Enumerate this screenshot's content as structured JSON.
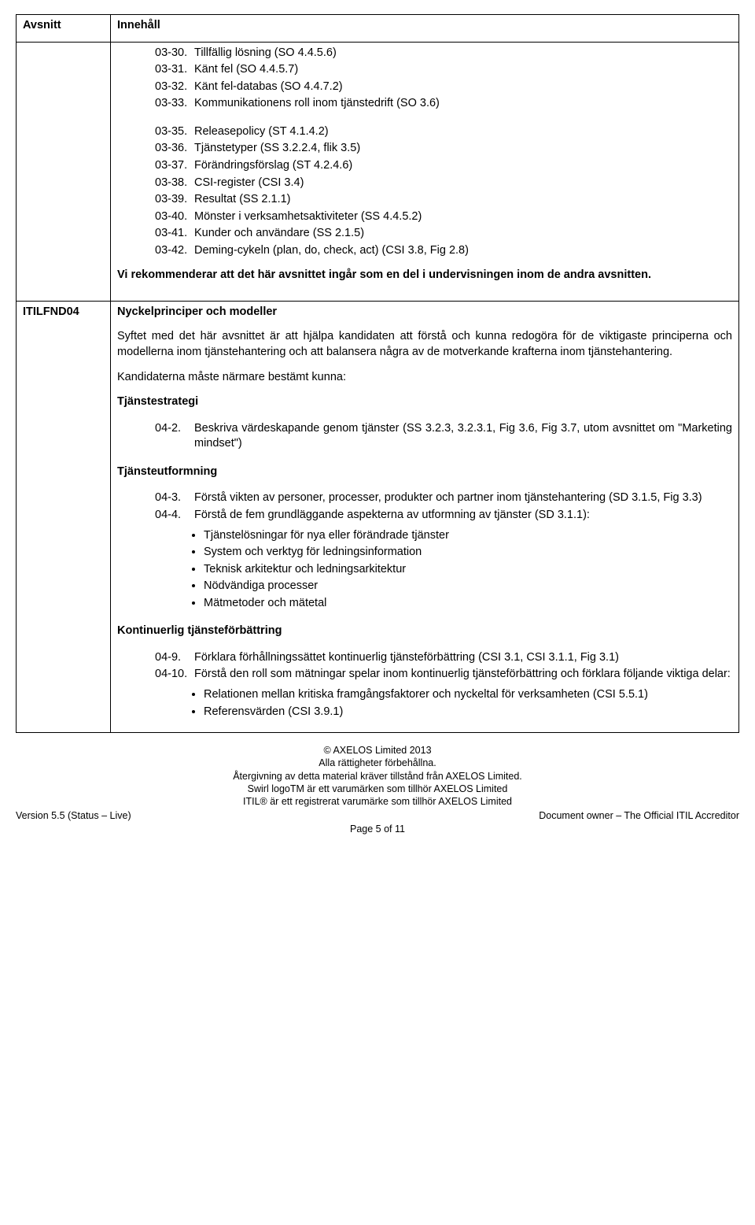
{
  "table": {
    "header": {
      "c1": "Avsnitt",
      "c2": "Innehåll"
    },
    "row1": {
      "items": [
        {
          "n": "03-30.",
          "t": "Tillfällig lösning (SO 4.4.5.6)"
        },
        {
          "n": "03-31.",
          "t": "Känt fel (SO 4.4.5.7)"
        },
        {
          "n": "03-32.",
          "t": "Känt fel-databas (SO 4.4.7.2)"
        },
        {
          "n": "03-33.",
          "t": "Kommunikationens roll inom tjänstedrift (SO 3.6)"
        }
      ],
      "items2": [
        {
          "n": "03-35.",
          "t": "Releasepolicy (ST 4.1.4.2)"
        },
        {
          "n": "03-36.",
          "t": "Tjänstetyper (SS 3.2.2.4, flik 3.5)"
        },
        {
          "n": "03-37.",
          "t": "Förändringsförslag (ST 4.2.4.6)"
        },
        {
          "n": "03-38.",
          "t": "CSI-register (CSI 3.4)"
        },
        {
          "n": "03-39.",
          "t": "Resultat (SS 2.1.1)"
        },
        {
          "n": "03-40.",
          "t": "Mönster i verksamhetsaktiviteter (SS 4.4.5.2)"
        },
        {
          "n": "03-41.",
          "t": "Kunder och användare (SS 2.1.5)"
        },
        {
          "n": "03-42.",
          "t": "Deming-cykeln (plan, do, check, act) (CSI 3.8, Fig 2.8)"
        }
      ],
      "rec": "Vi rekommenderar att det här avsnittet ingår som en del i undervisningen inom de andra avsnitten."
    },
    "row2": {
      "code": "ITILFND04",
      "title": "Nyckelprinciper och modeller",
      "intro": "Syftet med det här avsnittet är att hjälpa kandidaten att förstå och kunna redogöra för de viktigaste principerna och modellerna inom tjänstehantering och att balansera några av de motverkande krafterna inom tjänstehantering.",
      "kand": "Kandidaterna måste närmare bestämt kunna:",
      "h_strategi": "Tjänstestrategi",
      "strategi": [
        {
          "n": "04-2.",
          "t": "Beskriva värdeskapande genom tjänster (SS 3.2.3, 3.2.3.1, Fig 3.6, Fig 3.7, utom avsnittet om \"Marketing mindset\")"
        }
      ],
      "h_utform": "Tjänsteutformning",
      "utform": [
        {
          "n": "04-3.",
          "t": "Förstå vikten av personer, processer, produkter och partner inom tjänstehantering (SD 3.1.5, Fig 3.3)"
        },
        {
          "n": "04-4.",
          "t": "Förstå de fem grundläggande aspekterna av utformning av tjänster (SD 3.1.1):"
        }
      ],
      "utform_bullets": [
        "Tjänstelösningar för nya eller förändrade tjänster",
        "System och verktyg för ledningsinformation",
        "Teknisk arkitektur och ledningsarkitektur",
        "Nödvändiga processer",
        "Mätmetoder och mätetal"
      ],
      "h_kont": "Kontinuerlig tjänsteförbättring",
      "kont": [
        {
          "n": "04-9.",
          "t": "Förklara förhållningssättet kontinuerlig tjänsteförbättring (CSI 3.1, CSI 3.1.1, Fig 3.1)"
        },
        {
          "n": "04-10.",
          "t": "Förstå den roll som mätningar spelar inom kontinuerlig tjänsteförbättring och förklara följande viktiga delar:"
        }
      ],
      "kont_bullets": [
        "Relationen mellan kritiska framgångsfaktorer och nyckeltal för verksamheten (CSI 5.5.1)",
        "Referensvärden (CSI 3.9.1)"
      ]
    }
  },
  "footer": {
    "l1": "© AXELOS Limited 2013",
    "l2": "Alla rättigheter förbehållna.",
    "l3": "Återgivning av detta material kräver tillstånd från AXELOS Limited.",
    "l4": "Swirl logoTM är ett varumärken som tillhör AXELOS Limited",
    "l5": "ITIL® är ett registrerat varumärke som tillhör AXELOS Limited",
    "left": "Version 5.5 (Status – Live)",
    "right": "Document owner – The Official ITIL Accreditor",
    "page": "Page 5 of 11"
  }
}
